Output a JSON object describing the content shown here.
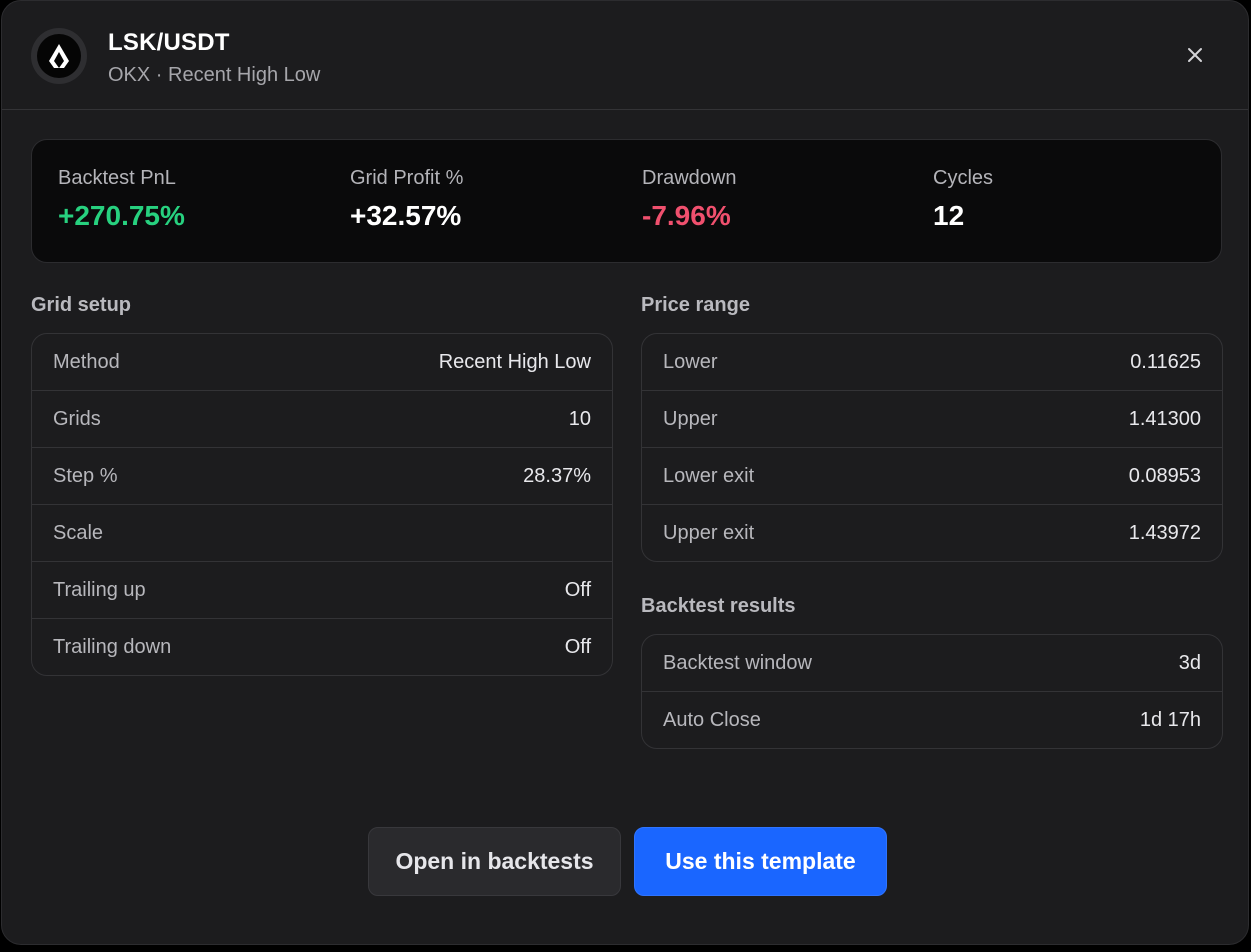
{
  "header": {
    "title": "LSK/USDT",
    "subtitle": "OKX · Recent High Low",
    "logo_icon": "lisk-logo-icon",
    "close_icon": "close-icon"
  },
  "stats": [
    {
      "label": "Backtest PnL",
      "value": "+270.75%",
      "color": "#27d17f"
    },
    {
      "label": "Grid Profit %",
      "value": "+32.57%",
      "color": "#ffffff"
    },
    {
      "label": "Drawdown",
      "value": "-7.96%",
      "color": "#f0506e"
    },
    {
      "label": "Cycles",
      "value": "12",
      "color": "#ffffff"
    }
  ],
  "grid_setup": {
    "title": "Grid setup",
    "rows": [
      {
        "label": "Method",
        "value": "Recent High Low"
      },
      {
        "label": "Grids",
        "value": "10"
      },
      {
        "label": "Step %",
        "value": "28.37%"
      },
      {
        "label": "Scale",
        "value": ""
      },
      {
        "label": "Trailing up",
        "value": "Off"
      },
      {
        "label": "Trailing down",
        "value": "Off"
      }
    ]
  },
  "price_range": {
    "title": "Price range",
    "rows": [
      {
        "label": "Lower",
        "value": "0.11625"
      },
      {
        "label": "Upper",
        "value": "1.41300"
      },
      {
        "label": "Lower exit",
        "value": "0.08953"
      },
      {
        "label": "Upper exit",
        "value": "1.43972"
      }
    ]
  },
  "backtest_results": {
    "title": "Backtest results",
    "rows": [
      {
        "label": "Backtest window",
        "value": "3d"
      },
      {
        "label": "Auto Close",
        "value": "1d 17h"
      }
    ]
  },
  "actions": {
    "secondary_label": "Open in backtests",
    "primary_label": "Use this template",
    "primary_color": "#1a66ff"
  }
}
